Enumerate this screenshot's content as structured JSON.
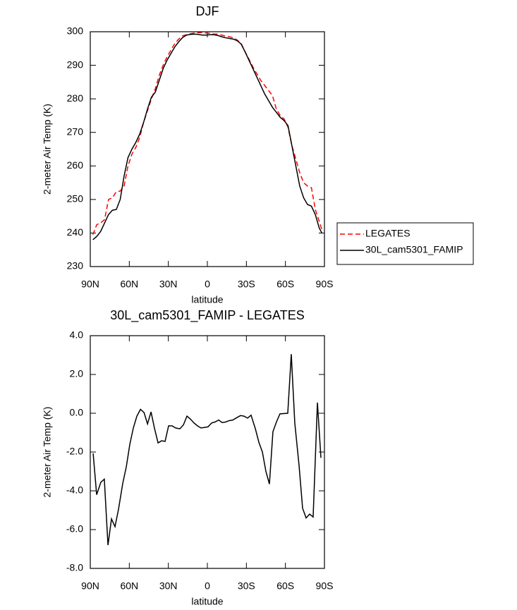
{
  "chart_data": [
    {
      "type": "line",
      "title": "DJF",
      "x_label": "latitude",
      "y_label": "2-meter Air Temp (K)",
      "x": [
        88,
        85,
        82,
        79,
        76,
        73,
        70,
        67,
        64,
        61,
        58,
        55,
        52,
        49,
        46,
        43,
        40,
        37,
        34,
        31,
        28,
        25,
        22,
        19,
        16,
        13,
        10,
        7,
        4,
        1,
        -2,
        -5,
        -8,
        -11,
        -14,
        -17,
        -20,
        -23,
        -26,
        -29,
        -32,
        -35,
        -38,
        -41,
        -44,
        -47,
        -50,
        -53,
        -56,
        -59,
        -62,
        -65,
        -68,
        -71,
        -74,
        -77,
        -80,
        -83,
        -86,
        -88
      ],
      "series": [
        {
          "name": "LEGATES",
          "color": "#ff0000",
          "dash": true,
          "values": [
            239.5,
            242.5,
            243,
            244,
            250,
            250.5,
            252.3,
            252.5,
            254,
            260,
            263.5,
            265.5,
            268.5,
            273,
            276.5,
            280,
            283,
            287,
            290,
            292.5,
            294.5,
            296.5,
            297.8,
            298.8,
            299.1,
            299.4,
            299.6,
            299.7,
            299.8,
            299.6,
            299.5,
            299.3,
            299.3,
            299,
            298.7,
            298.5,
            298.2,
            297.5,
            296.5,
            294,
            291.8,
            289.5,
            287.5,
            285.5,
            284,
            282.5,
            281,
            277,
            275,
            274,
            271.5,
            266,
            262,
            258,
            255,
            254,
            253.5,
            247,
            243.5,
            241
          ]
        },
        {
          "name": "30L_cam5301_FAMIP",
          "color": "#000000",
          "dash": false,
          "values": [
            238,
            239,
            240.5,
            243,
            245.5,
            246.8,
            247,
            250,
            257,
            262.5,
            265,
            267,
            269.5,
            273,
            277,
            280.5,
            282,
            285.5,
            289,
            291.5,
            293.5,
            295.5,
            297,
            298.3,
            299,
            299.2,
            299.3,
            299.2,
            299,
            299,
            299.1,
            299.1,
            298.9,
            298.5,
            298.2,
            298,
            297.8,
            297.3,
            296.3,
            294,
            291.5,
            289,
            286.5,
            284,
            281.5,
            279.5,
            277.5,
            276,
            274.5,
            273.5,
            272,
            266,
            260,
            254,
            250.5,
            248.5,
            248,
            245.5,
            241.5,
            240
          ]
        }
      ],
      "xlim": [
        90,
        -90
      ],
      "xticks": [
        {
          "value": 90,
          "label": "90N"
        },
        {
          "value": 60,
          "label": "60N"
        },
        {
          "value": 30,
          "label": "30N"
        },
        0,
        {
          "value": -30,
          "label": "30S"
        },
        {
          "value": -60,
          "label": "60S"
        },
        {
          "value": -90,
          "label": "90S"
        }
      ],
      "ylim": [
        230,
        300
      ],
      "yticks": [
        230,
        240,
        250,
        260,
        270,
        280,
        290,
        300
      ],
      "legend": "right"
    },
    {
      "type": "line",
      "title": "30L_cam5301_FAMIP - LEGATES",
      "x_label": "latitude",
      "y_label": "2-meter Air Temp (K)",
      "x": [
        87.8,
        85.1,
        81.9,
        79.2,
        76.4,
        73.7,
        71.0,
        68.3,
        65.0,
        62.3,
        59.6,
        56.9,
        54.2,
        51.4,
        48.7,
        46.0,
        43.3,
        40.7,
        37.9,
        35.2,
        32.5,
        29.8,
        27.1,
        24.4,
        21.1,
        18.4,
        15.7,
        13.0,
        10.3,
        7.6,
        4.9,
        2.2,
        -0.5,
        -3.3,
        -5.9,
        -8.7,
        -11.4,
        -14.1,
        -16.8,
        -19.5,
        -22.8,
        -25.5,
        -28.2,
        -30.9,
        -33.6,
        -36.9,
        -39.6,
        -42.3,
        -45.0,
        -47.7,
        -50.4,
        -53.1,
        -55.8,
        -61.8,
        -64.5,
        -67.2,
        -70.5,
        -73.2,
        -75.9,
        -78.6,
        -81.3,
        -84.6,
        -87.3
      ],
      "series": [
        {
          "name": "30L_cam5301_FAMIP - LEGATES",
          "color": "#000000",
          "dash": false,
          "values": [
            -2.07,
            -4.2,
            -3.56,
            -3.4,
            -6.8,
            -5.45,
            -5.85,
            -4.95,
            -3.6,
            -2.76,
            -1.6,
            -0.76,
            -0.15,
            0.2,
            0.04,
            -0.55,
            0.07,
            -0.76,
            -1.53,
            -1.42,
            -1.45,
            -0.65,
            -0.65,
            -0.76,
            -0.8,
            -0.6,
            -0.15,
            -0.3,
            -0.5,
            -0.65,
            -0.76,
            -0.73,
            -0.7,
            -0.5,
            -0.45,
            -0.35,
            -0.48,
            -0.45,
            -0.38,
            -0.35,
            -0.22,
            -0.12,
            -0.15,
            -0.25,
            -0.1,
            -0.8,
            -1.5,
            -2.0,
            -3.0,
            -3.65,
            -0.95,
            -0.45,
            -0.03,
            0.0,
            3.05,
            -0.5,
            -2.7,
            -4.9,
            -5.4,
            -5.2,
            -5.35,
            0.55,
            -2.3
          ]
        }
      ],
      "xlim": [
        90,
        -90
      ],
      "xticks": [
        {
          "value": 90,
          "label": "90N"
        },
        {
          "value": 60,
          "label": "60N"
        },
        {
          "value": 30,
          "label": "30N"
        },
        0,
        {
          "value": -30,
          "label": "30S"
        },
        {
          "value": -60,
          "label": "60S"
        },
        {
          "value": -90,
          "label": "90S"
        }
      ],
      "ylim": [
        -8,
        4
      ],
      "yticks": [
        {
          "value": -8,
          "label": "-8.0"
        },
        {
          "value": -6,
          "label": "-6.0"
        },
        {
          "value": -4,
          "label": "-4.0"
        },
        {
          "value": -2,
          "label": "-2.0"
        },
        {
          "value": 0,
          "label": "0.0"
        },
        {
          "value": 2,
          "label": "2.0"
        },
        {
          "value": 4,
          "label": "4.0"
        }
      ]
    }
  ]
}
